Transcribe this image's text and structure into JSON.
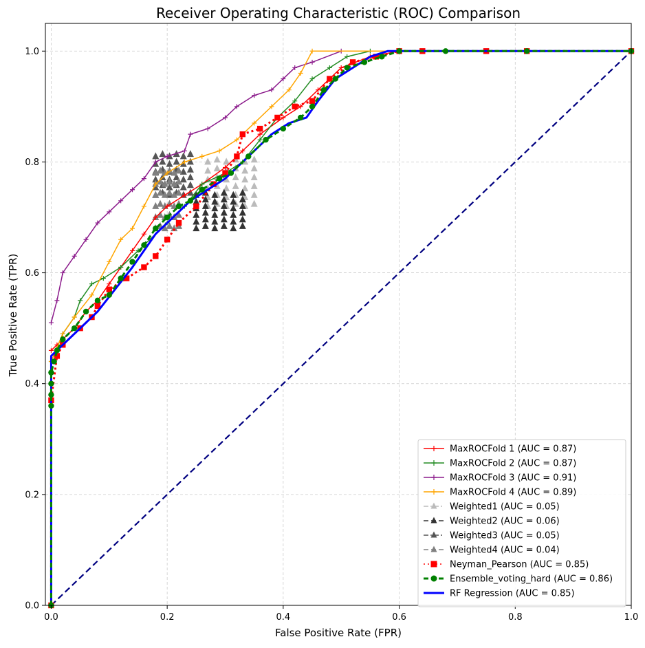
{
  "chart_data": {
    "type": "line",
    "title": "Receiver Operating Characteristic (ROC) Comparison",
    "xlabel": "False Positive Rate (FPR)",
    "ylabel": "True Positive Rate (TPR)",
    "xlim": [
      -0.01,
      1.0
    ],
    "ylim": [
      0.0,
      1.05
    ],
    "xticks": [
      0.0,
      0.2,
      0.4,
      0.6,
      0.8,
      1.0
    ],
    "yticks": [
      0.0,
      0.2,
      0.4,
      0.6,
      0.8,
      1.0
    ],
    "xtick_labels": [
      "0.0",
      "0.2",
      "0.4",
      "0.6",
      "0.8",
      "1.0"
    ],
    "ytick_labels": [
      "0.0",
      "0.2",
      "0.4",
      "0.6",
      "0.8",
      "1.0"
    ],
    "grid": true,
    "legend_position": "lower-right",
    "series": [
      {
        "name": "MaxROCFold 1 (AUC = 0.87)",
        "color": "#ff0000",
        "marker": "plus",
        "linestyle": "solid",
        "points": [
          [
            0,
            0.46
          ],
          [
            0.01,
            0.47
          ],
          [
            0.02,
            0.48
          ],
          [
            0.04,
            0.5
          ],
          [
            0.06,
            0.53
          ],
          [
            0.08,
            0.55
          ],
          [
            0.1,
            0.58
          ],
          [
            0.12,
            0.61
          ],
          [
            0.14,
            0.64
          ],
          [
            0.16,
            0.67
          ],
          [
            0.18,
            0.7
          ],
          [
            0.2,
            0.72
          ],
          [
            0.23,
            0.74
          ],
          [
            0.26,
            0.76
          ],
          [
            0.3,
            0.79
          ],
          [
            0.33,
            0.82
          ],
          [
            0.36,
            0.85
          ],
          [
            0.4,
            0.88
          ],
          [
            0.43,
            0.9
          ],
          [
            0.46,
            0.93
          ],
          [
            0.5,
            0.97
          ],
          [
            0.55,
            0.99
          ],
          [
            0.6,
            1.0
          ],
          [
            1.0,
            1.0
          ]
        ]
      },
      {
        "name": "MaxROCFold 2 (AUC = 0.87)",
        "color": "#228b22",
        "marker": "plus",
        "linestyle": "solid",
        "points": [
          [
            0,
            0.44
          ],
          [
            0.02,
            0.49
          ],
          [
            0.04,
            0.52
          ],
          [
            0.05,
            0.55
          ],
          [
            0.07,
            0.58
          ],
          [
            0.09,
            0.59
          ],
          [
            0.12,
            0.61
          ],
          [
            0.15,
            0.64
          ],
          [
            0.17,
            0.66
          ],
          [
            0.2,
            0.69
          ],
          [
            0.23,
            0.72
          ],
          [
            0.26,
            0.76
          ],
          [
            0.3,
            0.78
          ],
          [
            0.33,
            0.8
          ],
          [
            0.36,
            0.84
          ],
          [
            0.39,
            0.88
          ],
          [
            0.42,
            0.91
          ],
          [
            0.45,
            0.95
          ],
          [
            0.48,
            0.97
          ],
          [
            0.51,
            0.99
          ],
          [
            0.55,
            1.0
          ],
          [
            1.0,
            1.0
          ]
        ]
      },
      {
        "name": "MaxROCFold 3 (AUC = 0.91)",
        "color": "#8b1a8b",
        "marker": "plus",
        "linestyle": "solid",
        "points": [
          [
            0,
            0.51
          ],
          [
            0.01,
            0.55
          ],
          [
            0.02,
            0.6
          ],
          [
            0.04,
            0.63
          ],
          [
            0.06,
            0.66
          ],
          [
            0.08,
            0.69
          ],
          [
            0.1,
            0.71
          ],
          [
            0.12,
            0.73
          ],
          [
            0.14,
            0.75
          ],
          [
            0.16,
            0.77
          ],
          [
            0.18,
            0.8
          ],
          [
            0.2,
            0.81
          ],
          [
            0.23,
            0.82
          ],
          [
            0.24,
            0.85
          ],
          [
            0.27,
            0.86
          ],
          [
            0.3,
            0.88
          ],
          [
            0.32,
            0.9
          ],
          [
            0.35,
            0.92
          ],
          [
            0.38,
            0.93
          ],
          [
            0.4,
            0.95
          ],
          [
            0.42,
            0.97
          ],
          [
            0.45,
            0.98
          ],
          [
            0.5,
            1.0
          ],
          [
            1.0,
            1.0
          ]
        ]
      },
      {
        "name": "MaxROCFold 4 (AUC = 0.89)",
        "color": "#ffa500",
        "marker": "plus",
        "linestyle": "solid",
        "points": [
          [
            0,
            0.44
          ],
          [
            0.02,
            0.49
          ],
          [
            0.04,
            0.52
          ],
          [
            0.07,
            0.56
          ],
          [
            0.1,
            0.62
          ],
          [
            0.12,
            0.66
          ],
          [
            0.14,
            0.68
          ],
          [
            0.16,
            0.72
          ],
          [
            0.18,
            0.76
          ],
          [
            0.2,
            0.78
          ],
          [
            0.23,
            0.8
          ],
          [
            0.26,
            0.81
          ],
          [
            0.29,
            0.82
          ],
          [
            0.32,
            0.84
          ],
          [
            0.35,
            0.87
          ],
          [
            0.38,
            0.9
          ],
          [
            0.41,
            0.93
          ],
          [
            0.43,
            0.96
          ],
          [
            0.45,
            1.0
          ],
          [
            1.0,
            1.0
          ]
        ]
      },
      {
        "name": "Ensemble_voting_hard (AUC = 0.86)",
        "color": "#008000",
        "marker": "circle",
        "linestyle": "dashed",
        "points": [
          [
            0,
            0
          ],
          [
            0,
            0.36
          ],
          [
            0,
            0.38
          ],
          [
            0,
            0.4
          ],
          [
            0,
            0.42
          ],
          [
            0.005,
            0.44
          ],
          [
            0.01,
            0.46
          ],
          [
            0.02,
            0.48
          ],
          [
            0.04,
            0.5
          ],
          [
            0.06,
            0.53
          ],
          [
            0.08,
            0.55
          ],
          [
            0.1,
            0.56
          ],
          [
            0.12,
            0.59
          ],
          [
            0.14,
            0.62
          ],
          [
            0.16,
            0.65
          ],
          [
            0.18,
            0.68
          ],
          [
            0.2,
            0.7
          ],
          [
            0.22,
            0.72
          ],
          [
            0.24,
            0.73
          ],
          [
            0.26,
            0.75
          ],
          [
            0.29,
            0.77
          ],
          [
            0.31,
            0.78
          ],
          [
            0.34,
            0.81
          ],
          [
            0.37,
            0.84
          ],
          [
            0.4,
            0.86
          ],
          [
            0.43,
            0.88
          ],
          [
            0.45,
            0.9
          ],
          [
            0.47,
            0.93
          ],
          [
            0.49,
            0.95
          ],
          [
            0.51,
            0.97
          ],
          [
            0.54,
            0.98
          ],
          [
            0.57,
            0.99
          ],
          [
            0.6,
            1.0
          ],
          [
            0.68,
            1.0
          ],
          [
            0.82,
            1.0
          ],
          [
            1.0,
            1.0
          ]
        ]
      },
      {
        "name": "RF Regression (AUC = 0.85)",
        "color": "#0000ff",
        "marker": "none",
        "linestyle": "solid",
        "points": [
          [
            0,
            0
          ],
          [
            0,
            0.45
          ],
          [
            0.02,
            0.47
          ],
          [
            0.05,
            0.5
          ],
          [
            0.08,
            0.53
          ],
          [
            0.11,
            0.57
          ],
          [
            0.14,
            0.61
          ],
          [
            0.16,
            0.64
          ],
          [
            0.18,
            0.67
          ],
          [
            0.21,
            0.7
          ],
          [
            0.24,
            0.73
          ],
          [
            0.27,
            0.75
          ],
          [
            0.3,
            0.77
          ],
          [
            0.32,
            0.79
          ],
          [
            0.35,
            0.82
          ],
          [
            0.38,
            0.85
          ],
          [
            0.41,
            0.87
          ],
          [
            0.44,
            0.88
          ],
          [
            0.46,
            0.91
          ],
          [
            0.49,
            0.95
          ],
          [
            0.52,
            0.97
          ],
          [
            0.55,
            0.99
          ],
          [
            0.58,
            1.0
          ],
          [
            1.0,
            1.0
          ]
        ]
      },
      {
        "name": "Neyman_Pearson (AUC = 0.85)",
        "color": "#ff0000",
        "marker": "square",
        "linestyle": "dotted",
        "points": [
          [
            0,
            0
          ],
          [
            0,
            0.37
          ],
          [
            0.01,
            0.45
          ],
          [
            0.02,
            0.47
          ],
          [
            0.05,
            0.5
          ],
          [
            0.07,
            0.52
          ],
          [
            0.08,
            0.54
          ],
          [
            0.1,
            0.57
          ],
          [
            0.13,
            0.59
          ],
          [
            0.16,
            0.61
          ],
          [
            0.18,
            0.63
          ],
          [
            0.2,
            0.66
          ],
          [
            0.22,
            0.69
          ],
          [
            0.25,
            0.72
          ],
          [
            0.28,
            0.76
          ],
          [
            0.3,
            0.78
          ],
          [
            0.32,
            0.81
          ],
          [
            0.33,
            0.85
          ],
          [
            0.36,
            0.86
          ],
          [
            0.39,
            0.88
          ],
          [
            0.42,
            0.9
          ],
          [
            0.45,
            0.91
          ],
          [
            0.48,
            0.95
          ],
          [
            0.52,
            0.98
          ],
          [
            0.56,
            0.99
          ],
          [
            0.6,
            1.0
          ],
          [
            0.64,
            1.0
          ],
          [
            0.75,
            1.0
          ],
          [
            0.82,
            1.0
          ],
          [
            1.0,
            1.0
          ]
        ]
      },
      {
        "name": "Weighted1 (AUC = 0.05)",
        "color": "#bbbbbb",
        "marker": "triangle",
        "linestyle": "dashdot",
        "cluster": {
          "x": [
            0.27,
            0.35
          ],
          "y": [
            0.72,
            0.8
          ]
        }
      },
      {
        "name": "Weighted2 (AUC = 0.06)",
        "color": "#333333",
        "marker": "triangle",
        "linestyle": "dashed",
        "cluster": {
          "x": [
            0.25,
            0.33
          ],
          "y": [
            0.68,
            0.74
          ]
        }
      },
      {
        "name": "Weighted3 (AUC = 0.05)",
        "color": "#555555",
        "marker": "triangle",
        "linestyle": "dashdot",
        "cluster": {
          "x": [
            0.18,
            0.24
          ],
          "y": [
            0.74,
            0.81
          ]
        }
      },
      {
        "name": "Weighted4 (AUC = 0.04)",
        "color": "#808080",
        "marker": "triangle",
        "linestyle": "dashed",
        "cluster": {
          "x": [
            0.18,
            0.22
          ],
          "y": [
            0.68,
            0.78
          ]
        }
      }
    ],
    "reference_line": {
      "color": "#000080",
      "linestyle": "dashed",
      "points": [
        [
          0,
          0
        ],
        [
          1,
          1
        ]
      ]
    }
  }
}
